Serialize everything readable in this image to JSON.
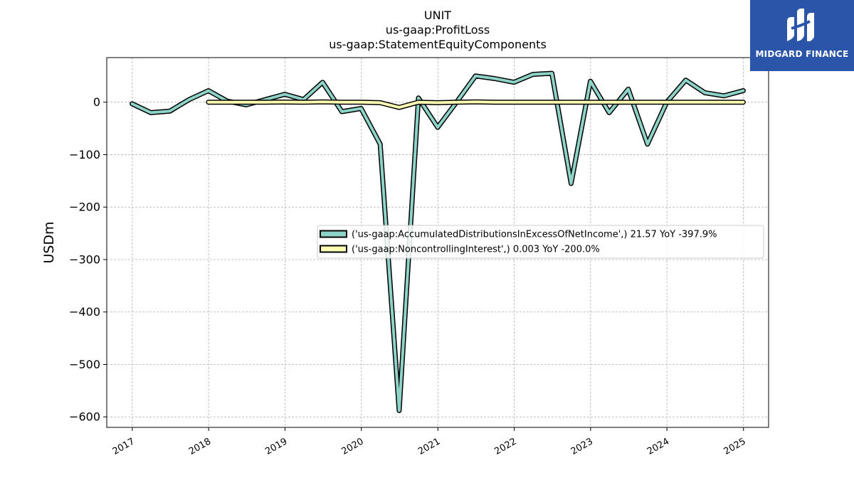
{
  "chart_data": {
    "type": "line",
    "title_lines": [
      "UNIT",
      "us-gaap:ProfitLoss",
      "us-gaap:StatementEquityComponents"
    ],
    "xlabel": "",
    "ylabel": "USDm",
    "x_ticks": [
      "2017",
      "2018",
      "2019",
      "2020",
      "2021",
      "2022",
      "2023",
      "2024",
      "2025"
    ],
    "xlim": [
      "2016-09-01",
      "2025-05-01"
    ],
    "ylim": [
      -620,
      85
    ],
    "y_ticks": [
      0,
      -100,
      -200,
      -300,
      -400,
      -500,
      -600
    ],
    "y_tick_labels": [
      "0",
      "−100",
      "−200",
      "−300",
      "−400",
      "−500",
      "−600"
    ],
    "grid": true,
    "legend_position": "center-right",
    "series": [
      {
        "name": "('us-gaap:AccumulatedDistributionsInExcessOfNetIncome',) 21.57 YoY -397.9%",
        "color": "#8dd3c7",
        "x": [
          "2016-12-31",
          "2017-03-31",
          "2017-06-30",
          "2017-09-30",
          "2017-12-31",
          "2018-03-31",
          "2018-06-30",
          "2018-09-30",
          "2018-12-31",
          "2019-03-31",
          "2019-06-30",
          "2019-09-30",
          "2019-12-31",
          "2020-03-31",
          "2020-06-30",
          "2020-09-30",
          "2020-12-31",
          "2021-03-31",
          "2021-06-30",
          "2021-09-30",
          "2021-12-31",
          "2022-03-31",
          "2022-06-30",
          "2022-09-30",
          "2022-12-31",
          "2023-03-31",
          "2023-06-30",
          "2023-09-30",
          "2023-12-31",
          "2024-03-31",
          "2024-06-30",
          "2024-09-30",
          "2024-12-31"
        ],
        "y": [
          -3,
          -20,
          -17,
          5,
          22,
          2,
          -5,
          5,
          15,
          5,
          38,
          -18,
          -12,
          -80,
          -588,
          8,
          -48,
          0,
          50,
          45,
          38,
          53,
          55,
          -155,
          40,
          -20,
          25,
          -80,
          0,
          42,
          18,
          12,
          22
        ]
      },
      {
        "name": "('us-gaap:NoncontrollingInterest',) 0.003 YoY -200.0%",
        "color": "#ffffb3",
        "x": [
          "2017-12-31",
          "2018-03-31",
          "2018-06-30",
          "2018-09-30",
          "2018-12-31",
          "2019-03-31",
          "2019-06-30",
          "2019-09-30",
          "2019-12-31",
          "2020-03-31",
          "2020-06-30",
          "2020-09-30",
          "2020-12-31",
          "2021-03-31",
          "2021-06-30",
          "2021-09-30",
          "2021-12-31",
          "2022-03-31",
          "2022-06-30",
          "2022-09-30",
          "2022-12-31",
          "2023-03-31",
          "2023-06-30",
          "2023-09-30",
          "2023-12-31",
          "2024-03-31",
          "2024-06-30",
          "2024-09-30",
          "2024-12-31"
        ],
        "y": [
          0,
          0,
          0,
          0,
          0.3,
          0,
          0.5,
          0,
          0,
          -1,
          -10,
          0,
          -1,
          0,
          0.5,
          0,
          0,
          0,
          0,
          0,
          0,
          0,
          0,
          0,
          0,
          0,
          0,
          0,
          0
        ]
      }
    ]
  },
  "logo": {
    "text": "MIDGARD FINANCE",
    "bg_color": "#2b55a8",
    "text_color": "#ffffff"
  }
}
